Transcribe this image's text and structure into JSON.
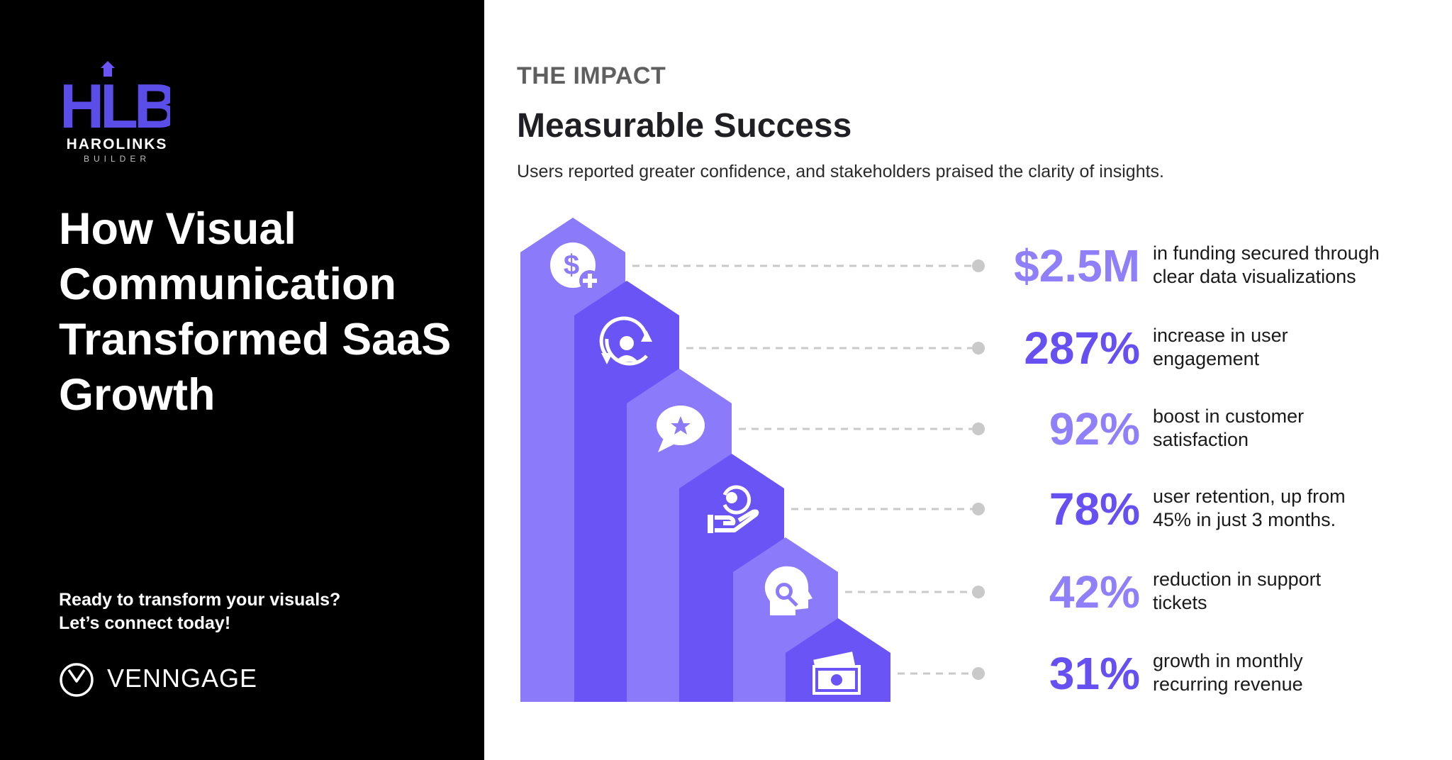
{
  "left_panel": {
    "logo": {
      "mark": "HLB",
      "name": "HAROLINKS",
      "sub": "BUILDER",
      "color": "#5b4de8"
    },
    "headline": "How Visual Communication Transformed SaaS Growth",
    "cta_line1": "Ready to transform your visuals?",
    "cta_line2": "Let’s connect today!",
    "brand": {
      "name": "VENNGAGE",
      "icon": "venngage-logo-icon"
    }
  },
  "main": {
    "eyebrow": "THE IMPACT",
    "title": "Measurable Success",
    "subtitle": "Users reported greater confidence, and stakeholders praised the clarity of insights."
  },
  "colors": {
    "step_light": "#8b7bfa",
    "step_dark": "#6a54f5",
    "value_light": "#8f80fa",
    "value_dark": "#6650f2",
    "connector": "#c9c9c9"
  },
  "stats": [
    {
      "value": "$2.5M",
      "line1": "in funding secured through",
      "line2": "clear data visualizations",
      "icon": "dollar-plus-icon",
      "tone": "light"
    },
    {
      "value": "287%",
      "line1": "increase in user",
      "line2": "engagement",
      "icon": "user-refresh-icon",
      "tone": "dark"
    },
    {
      "value": "92%",
      "line1": "boost in customer",
      "line2": "satisfaction",
      "icon": "star-speech-bubble-icon",
      "tone": "light"
    },
    {
      "value": "78%",
      "line1": "user retention, up from",
      "line2": "45% in just 3 months.",
      "icon": "hand-user-retention-icon",
      "tone": "dark"
    },
    {
      "value": "42%",
      "line1": "reduction in support",
      "line2": "tickets",
      "icon": "head-headset-support-icon",
      "tone": "light"
    },
    {
      "value": "31%",
      "line1": "growth in monthly",
      "line2": "recurring revenue",
      "icon": "money-bills-icon",
      "tone": "dark"
    }
  ]
}
